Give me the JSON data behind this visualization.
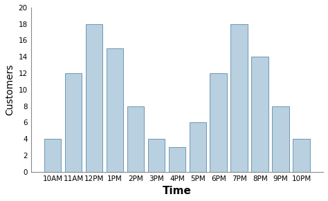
{
  "categories": [
    "10AM",
    "11AM",
    "12PM",
    "1PM",
    "2PM",
    "3PM",
    "4PM",
    "5PM",
    "6PM",
    "7PM",
    "8PM",
    "9PM",
    "10PM"
  ],
  "values": [
    4,
    12,
    18,
    15,
    8,
    4,
    3,
    6,
    12,
    18,
    14,
    8,
    4
  ],
  "bar_color": "#b8d0e0",
  "bar_edgecolor": "#5a8aaa",
  "ylabel": "Customers",
  "xlabel": "Time",
  "ylim": [
    0,
    20
  ],
  "yticks": [
    0,
    2,
    4,
    6,
    8,
    10,
    12,
    14,
    16,
    18,
    20
  ],
  "ylabel_fontsize": 10,
  "xlabel_fontsize": 11,
  "xlabel_fontweight": "bold",
  "tick_fontsize": 7.5,
  "bar_width": 0.82,
  "background_color": "#ffffff",
  "linewidth": 0.6
}
